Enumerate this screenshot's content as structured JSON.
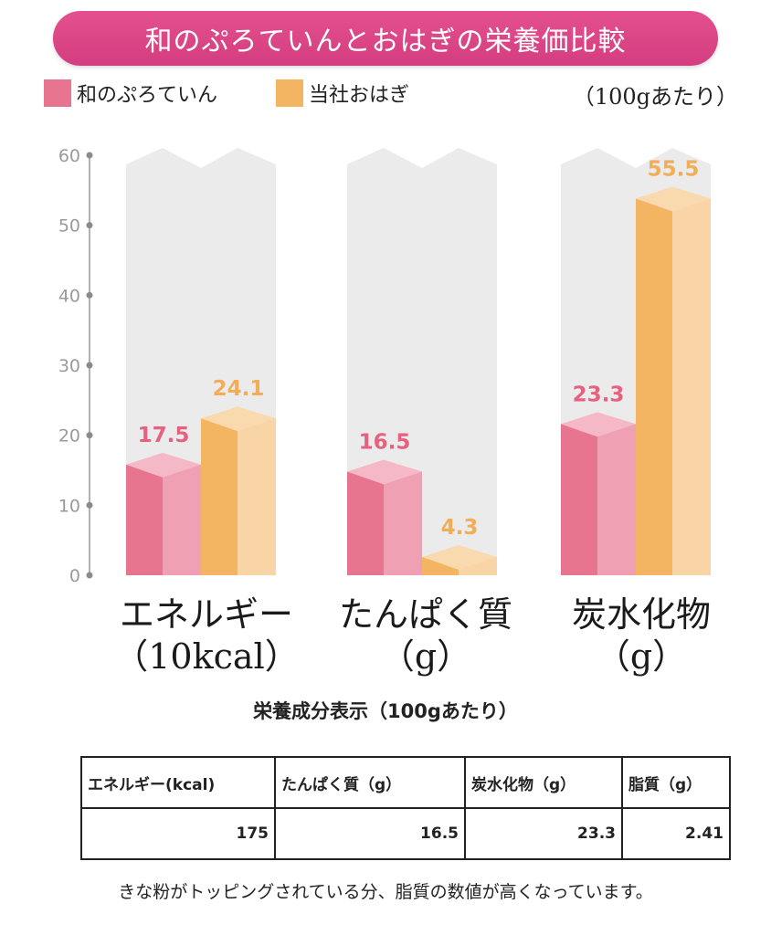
{
  "header": {
    "title": "和のぷろていんとおはぎの栄養価比較"
  },
  "legend": {
    "items": [
      {
        "label": "和のぷろていん",
        "color": "#e8758f"
      },
      {
        "label": "当社おはぎ",
        "color": "#f4b563"
      }
    ],
    "unit_note": "（100gあたり）"
  },
  "chart_data": {
    "type": "bar",
    "title": "和のぷろていんとおはぎの栄養価比較",
    "categories": [
      "エネルギー（10kcal）",
      "たんぱく質（g）",
      "炭水化物（g）"
    ],
    "category_lines": [
      [
        "エネルギー",
        "（10kcal）"
      ],
      [
        "たんぱく質",
        "（g）"
      ],
      [
        "炭水化物",
        "（g）"
      ]
    ],
    "series": [
      {
        "name": "和のぷろていん",
        "values": [
          17.5,
          16.5,
          23.3
        ],
        "labels": [
          "17.5",
          "16.5",
          "23.3"
        ],
        "color": "#e8758f"
      },
      {
        "name": "当社おはぎ",
        "values": [
          24.1,
          4.3,
          55.5
        ],
        "labels": [
          "24.1",
          "4.3",
          "55.5"
        ],
        "color": "#f4b563"
      }
    ],
    "ylim": [
      0,
      60
    ],
    "yticks": [
      "0",
      "10",
      "20",
      "30",
      "40",
      "50",
      "60"
    ],
    "grid": false,
    "legend": "top-left"
  },
  "table": {
    "title": "栄養成分表示（100gあたり）",
    "headers": [
      "エネルギー(kcal)",
      "たんぱく質（g）",
      "炭水化物（g）",
      "脂質（g）"
    ],
    "values": [
      "175",
      "16.5",
      "23.3",
      "2.41"
    ]
  },
  "footnote": "きな粉がトッピングされている分、脂質の数値が高くなっています。"
}
